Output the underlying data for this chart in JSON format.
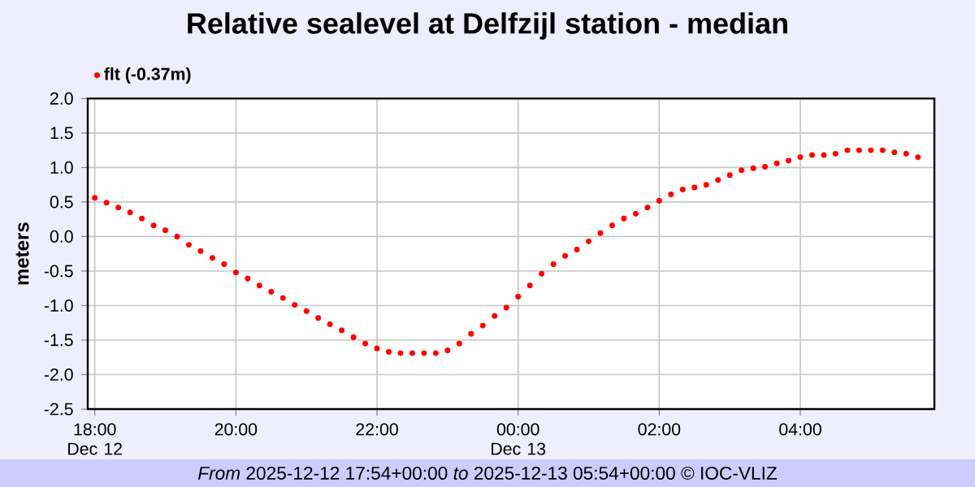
{
  "chart_data": {
    "type": "scatter",
    "title": "Relative sealevel at Delfzijl station - median",
    "ylabel": "meters",
    "annotations": [
      "*From* 2025-12-12 17:54+00:00 *to* 2025-12-13 05:54+00:00 © IOC-VLIZ"
    ],
    "series": [
      {
        "name": "flt (-0.37m)",
        "color": "#ff0000",
        "x": [
          "2025-12-12T18:00",
          "2025-12-12T18:10",
          "2025-12-12T18:20",
          "2025-12-12T18:30",
          "2025-12-12T18:40",
          "2025-12-12T18:50",
          "2025-12-12T19:00",
          "2025-12-12T19:10",
          "2025-12-12T19:20",
          "2025-12-12T19:30",
          "2025-12-12T19:40",
          "2025-12-12T19:50",
          "2025-12-12T20:00",
          "2025-12-12T20:10",
          "2025-12-12T20:20",
          "2025-12-12T20:30",
          "2025-12-12T20:40",
          "2025-12-12T20:50",
          "2025-12-12T21:00",
          "2025-12-12T21:10",
          "2025-12-12T21:20",
          "2025-12-12T21:30",
          "2025-12-12T21:40",
          "2025-12-12T21:50",
          "2025-12-12T22:00",
          "2025-12-12T22:10",
          "2025-12-12T22:20",
          "2025-12-12T22:30",
          "2025-12-12T22:40",
          "2025-12-12T22:50",
          "2025-12-12T23:00",
          "2025-12-12T23:10",
          "2025-12-12T23:20",
          "2025-12-12T23:30",
          "2025-12-12T23:40",
          "2025-12-12T23:50",
          "2025-12-13T00:00",
          "2025-12-13T00:10",
          "2025-12-13T00:20",
          "2025-12-13T00:30",
          "2025-12-13T00:40",
          "2025-12-13T00:50",
          "2025-12-13T01:00",
          "2025-12-13T01:10",
          "2025-12-13T01:20",
          "2025-12-13T01:30",
          "2025-12-13T01:40",
          "2025-12-13T01:50",
          "2025-12-13T02:00",
          "2025-12-13T02:10",
          "2025-12-13T02:20",
          "2025-12-13T02:30",
          "2025-12-13T02:40",
          "2025-12-13T02:50",
          "2025-12-13T03:00",
          "2025-12-13T03:10",
          "2025-12-13T03:20",
          "2025-12-13T03:30",
          "2025-12-13T03:40",
          "2025-12-13T03:50",
          "2025-12-13T04:00",
          "2025-12-13T04:10",
          "2025-12-13T04:20",
          "2025-12-13T04:30",
          "2025-12-13T04:40",
          "2025-12-13T04:50",
          "2025-12-13T05:00",
          "2025-12-13T05:10",
          "2025-12-13T05:20",
          "2025-12-13T05:30",
          "2025-12-13T05:40"
        ],
        "values": [
          0.56,
          0.49,
          0.42,
          0.35,
          0.26,
          0.16,
          0.09,
          0.0,
          -0.12,
          -0.21,
          -0.31,
          -0.4,
          -0.52,
          -0.61,
          -0.71,
          -0.8,
          -0.89,
          -0.99,
          -1.08,
          -1.18,
          -1.27,
          -1.36,
          -1.46,
          -1.55,
          -1.62,
          -1.67,
          -1.69,
          -1.69,
          -1.69,
          -1.69,
          -1.65,
          -1.55,
          -1.41,
          -1.29,
          -1.15,
          -1.03,
          -0.87,
          -0.71,
          -0.54,
          -0.4,
          -0.28,
          -0.19,
          -0.07,
          0.05,
          0.16,
          0.26,
          0.33,
          0.42,
          0.52,
          0.61,
          0.68,
          0.71,
          0.75,
          0.82,
          0.89,
          0.96,
          0.99,
          1.01,
          1.06,
          1.1,
          1.15,
          1.18,
          1.18,
          1.2,
          1.25,
          1.25,
          1.25,
          1.25,
          1.22,
          1.2,
          1.15
        ]
      }
    ],
    "xlim": [
      "2025-12-12T17:54",
      "2025-12-13T05:54"
    ],
    "xticks": [
      {
        "value": "2025-12-12T18:00",
        "label": "18:00 Dec 12"
      },
      {
        "value": "2025-12-12T20:00",
        "label": "20:00"
      },
      {
        "value": "2025-12-12T22:00",
        "label": "22:00"
      },
      {
        "value": "2025-12-13T00:00",
        "label": "00:00 Dec 13"
      },
      {
        "value": "2025-12-13T02:00",
        "label": "02:00"
      },
      {
        "value": "2025-12-13T04:00",
        "label": "04:00"
      }
    ],
    "ylim": [
      -2.5,
      2.0
    ],
    "yticks": [
      {
        "value": -2.5,
        "label": "-2.5"
      },
      {
        "value": -2,
        "label": "-2.0"
      },
      {
        "value": -1.5,
        "label": "-1.5"
      },
      {
        "value": -1,
        "label": "-1.0"
      },
      {
        "value": -0.5,
        "label": "-0.5"
      },
      {
        "value": 0,
        "label": "0.0"
      },
      {
        "value": 0.5,
        "label": "0.5"
      },
      {
        "value": 1,
        "label": "1.0"
      },
      {
        "value": 1.5,
        "label": "1.5"
      },
      {
        "value": 2,
        "label": "2.0"
      }
    ],
    "grid": true,
    "legend": "top left",
    "marker": "circle"
  }
}
